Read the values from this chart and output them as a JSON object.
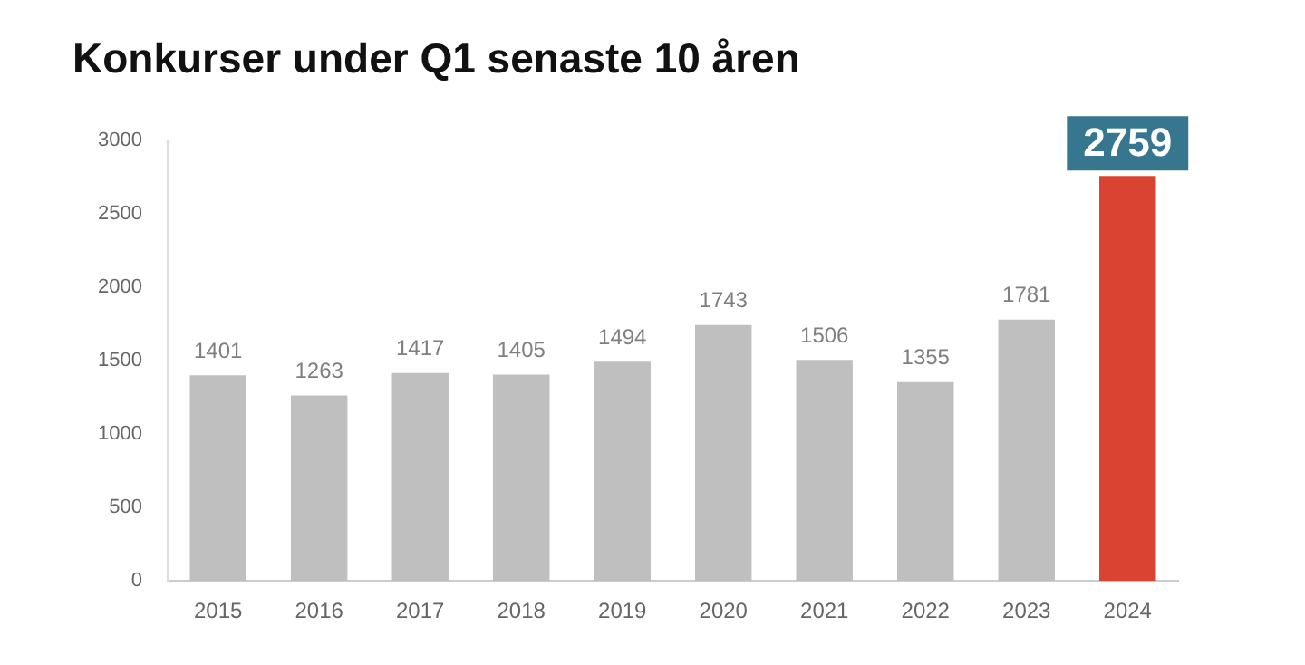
{
  "chart_data": {
    "type": "bar",
    "title": "Konkurser under Q1 senaste 10 åren",
    "categories": [
      "2015",
      "2016",
      "2017",
      "2018",
      "2019",
      "2020",
      "2021",
      "2022",
      "2023",
      "2024"
    ],
    "values": [
      1401,
      1263,
      1417,
      1405,
      1494,
      1743,
      1506,
      1355,
      1781,
      2759
    ],
    "colors": [
      "#bfbfbf",
      "#bfbfbf",
      "#bfbfbf",
      "#bfbfbf",
      "#bfbfbf",
      "#bfbfbf",
      "#bfbfbf",
      "#bfbfbf",
      "#bfbfbf",
      "#d94432"
    ],
    "ylim": [
      0,
      3000
    ],
    "yticks": [
      0,
      500,
      1000,
      1500,
      2000,
      2500,
      3000
    ],
    "grid": false,
    "legend": false,
    "data_labels": true
  }
}
